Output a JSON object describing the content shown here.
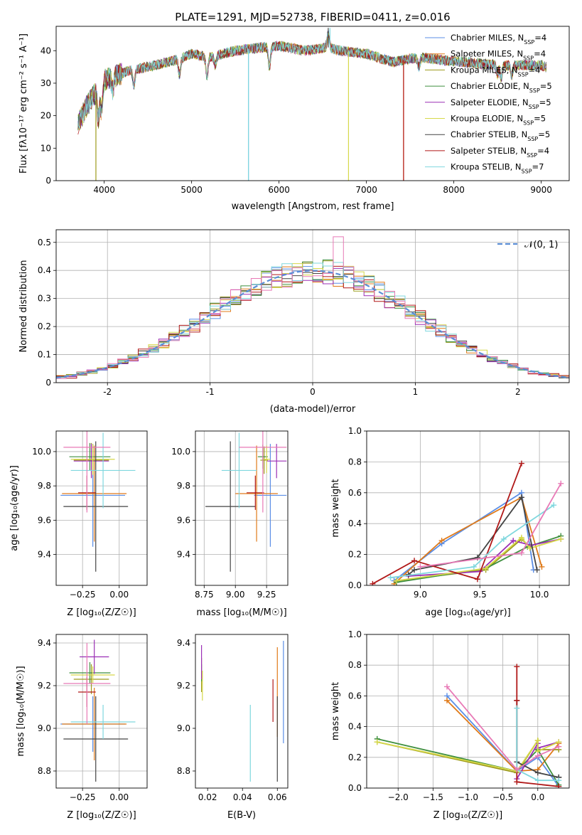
{
  "figure": {
    "title": "PLATE=1291, MJD=52738, FIBERID=0411, z=0.016"
  },
  "colors": {
    "chab_miles": "#5b8ee6",
    "salp_miles": "#e07b1a",
    "krou_miles": "#9c9a1c",
    "chab_elodie": "#3f8f3f",
    "salp_elodie": "#9b2fb5",
    "krou_elodie": "#d6d84a",
    "chab_stelib": "#444444",
    "salp_stelib": "#b01818",
    "krou_stelib": "#7fd7de",
    "pink": "#e879b6",
    "normal": "#5b8ed6",
    "grid": "#b0b0b0"
  },
  "chart_data": [
    {
      "type": "line",
      "panel": "spectrum",
      "xlabel": "wavelength [Angstrom, rest frame]",
      "ylabel": "Flux [fλ10⁻¹⁷ erg cm⁻² s⁻¹ A⁻¹]",
      "xlim": [
        3450,
        9320
      ],
      "ylim": [
        0,
        47.5
      ],
      "xticks": [
        4000,
        5000,
        6000,
        7000,
        8000,
        9000
      ],
      "yticks": [
        0,
        10,
        20,
        30,
        40
      ],
      "grid": false,
      "legend_position": "top-right",
      "series": [
        {
          "name": "Chabrier MILES, N",
          "sub": "SSP",
          "suffix": "=4",
          "color": "#5b8ee6"
        },
        {
          "name": "Salpeter MILES, N",
          "sub": "SSP",
          "suffix": "=4",
          "color": "#e07b1a"
        },
        {
          "name": "Kroupa MILES, N",
          "sub": "SSP",
          "suffix": "=4",
          "color": "#9c9a1c"
        },
        {
          "name": "Chabrier ELODIE, N",
          "sub": "SSP",
          "suffix": "=5",
          "color": "#3f8f3f"
        },
        {
          "name": "Salpeter ELODIE, N",
          "sub": "SSP",
          "suffix": "=5",
          "color": "#9b2fb5"
        },
        {
          "name": "Kroupa ELODIE, N",
          "sub": "SSP",
          "suffix": "=5",
          "color": "#d6d84a"
        },
        {
          "name": "Chabrier STELIB, N",
          "sub": "SSP",
          "suffix": "=5",
          "color": "#444444"
        },
        {
          "name": "Salpeter STELIB, N",
          "sub": "SSP",
          "suffix": "=4",
          "color": "#b01818"
        },
        {
          "name": "Kroupa STELIB, N",
          "sub": "SSP",
          "suffix": "=7",
          "color": "#7fd7de"
        }
      ],
      "continuum": [
        [
          3700,
          17
        ],
        [
          3800,
          23
        ],
        [
          3900,
          27
        ],
        [
          4000,
          31
        ],
        [
          4100,
          32
        ],
        [
          4300,
          34
        ],
        [
          4500,
          35
        ],
        [
          4800,
          37
        ],
        [
          5000,
          39
        ],
        [
          5200,
          38
        ],
        [
          5500,
          40
        ],
        [
          5800,
          41
        ],
        [
          6000,
          41.5
        ],
        [
          6300,
          40
        ],
        [
          6563,
          41
        ],
        [
          6700,
          40
        ],
        [
          7000,
          39
        ],
        [
          7300,
          36.5
        ],
        [
          7600,
          38
        ],
        [
          7900,
          37
        ],
        [
          8300,
          36
        ],
        [
          8600,
          35.5
        ],
        [
          9000,
          35.5
        ],
        [
          9050,
          35
        ]
      ],
      "dips": [
        {
          "x": 3905,
          "y": 0,
          "color": "#9c9a1c"
        },
        {
          "x": 5650,
          "y": 0,
          "color": "#5b8ee6"
        },
        {
          "x": 5650,
          "y": 0,
          "color": "#7fd7de"
        },
        {
          "x": 6795,
          "y": 0,
          "color": "#d6d84a"
        },
        {
          "x": 7425,
          "y": 0,
          "color": "#e07b1a"
        },
        {
          "x": 7425,
          "y": 0,
          "color": "#b01818"
        }
      ],
      "peaks": [
        {
          "x": 6563,
          "y": 47,
          "color": "#444444"
        },
        {
          "x": 6583,
          "y": 47,
          "color": "#7fd7de"
        }
      ]
    },
    {
      "type": "bar",
      "panel": "residuals",
      "xlabel": "(data-model)/error",
      "ylabel": "Normed distribution",
      "xlim": [
        -2.5,
        2.5
      ],
      "ylim": [
        0,
        0.545
      ],
      "xticks": [
        -2,
        -1,
        0,
        1,
        2
      ],
      "yticks": [
        0.0,
        0.1,
        0.2,
        0.3,
        0.4,
        0.5
      ],
      "grid": true,
      "legend_position": "top-right",
      "normal_curve": {
        "label": "𝒩(0, 1)",
        "mu": 0,
        "sigma": 1,
        "color": "#5b8ed6"
      },
      "bin_width": 0.1,
      "bin_start": -2.5,
      "histogram_colors": [
        "#5b8ee6",
        "#e07b1a",
        "#9c9a1c",
        "#3f8f3f",
        "#9b2fb5",
        "#d6d84a",
        "#444444",
        "#b01818",
        "#7fd7de",
        "#e879b6"
      ],
      "histogram_noise": [
        0.03,
        -0.03,
        0.02,
        -0.02,
        0.04,
        -0.04,
        0.01,
        0.05,
        -0.01,
        -0.05
      ]
    },
    {
      "type": "scatter",
      "panel": "age_vs_Z",
      "xlabel": "Z [log₁₀(Z/Z☉)]",
      "ylabel": "age  [log₁₀(age/yr)]",
      "xlim": [
        -0.43,
        0.19
      ],
      "ylim": [
        9.22,
        10.12
      ],
      "xticks": [
        -0.25,
        0.0
      ],
      "xticklabels": [
        "−0.25",
        "0.00"
      ],
      "yticks": [
        9.4,
        9.6,
        9.8,
        10.0
      ],
      "yticklabels": [
        "9.4",
        "9.6",
        "9.8",
        "10.0"
      ],
      "grid": true,
      "points": [
        {
          "x": -0.18,
          "y": 9.745,
          "xerr": 0.22,
          "yerr": 0.3,
          "color": "#5b8ee6"
        },
        {
          "x": -0.17,
          "y": 9.755,
          "xerr": 0.22,
          "yerr": 0.28,
          "color": "#e07b1a"
        },
        {
          "x": -0.19,
          "y": 9.95,
          "xerr": 0.12,
          "yerr": 0.1,
          "color": "#9c9a1c"
        },
        {
          "x": -0.2,
          "y": 9.97,
          "xerr": 0.14,
          "yerr": 0.08,
          "color": "#3f8f3f"
        },
        {
          "x": -0.19,
          "y": 9.945,
          "xerr": 0.12,
          "yerr": 0.1,
          "color": "#9b2fb5"
        },
        {
          "x": -0.18,
          "y": 9.955,
          "xerr": 0.15,
          "yerr": 0.09,
          "color": "#d6d84a"
        },
        {
          "x": -0.16,
          "y": 9.68,
          "xerr": 0.22,
          "yerr": 0.38,
          "color": "#444444"
        },
        {
          "x": -0.22,
          "y": 9.76,
          "xerr": 0.06,
          "yerr": 0.1,
          "color": "#b01818"
        },
        {
          "x": -0.11,
          "y": 9.89,
          "xerr": 0.22,
          "yerr": 0.22,
          "color": "#7fd7de"
        },
        {
          "x": -0.22,
          "y": 10.025,
          "xerr": 0.16,
          "yerr": 0.38,
          "color": "#e879b6"
        }
      ]
    },
    {
      "type": "scatter",
      "panel": "age_vs_mass",
      "xlabel": "mass [log₁₀(M/M☉)]",
      "ylabel": "",
      "xlim": [
        8.68,
        9.42
      ],
      "ylim": [
        9.22,
        10.12
      ],
      "xticks": [
        8.75,
        9.0,
        9.25
      ],
      "xticklabels": [
        "8.75",
        "9.00",
        "9.25"
      ],
      "yticks": [
        9.4,
        9.6,
        9.8,
        10.0
      ],
      "yticklabels": [
        "9.4",
        "9.6",
        "9.8",
        "10.0"
      ],
      "grid": true,
      "points": [
        {
          "x": 9.28,
          "y": 9.745,
          "xerr": 0.13,
          "yerr": 0.3,
          "color": "#5b8ee6"
        },
        {
          "x": 9.17,
          "y": 9.755,
          "xerr": 0.17,
          "yerr": 0.28,
          "color": "#e07b1a"
        },
        {
          "x": 9.23,
          "y": 9.95,
          "xerr": 0.03,
          "yerr": 0.08,
          "color": "#9c9a1c"
        },
        {
          "x": 9.22,
          "y": 9.97,
          "xerr": 0.04,
          "yerr": 0.07,
          "color": "#3f8f3f"
        },
        {
          "x": 9.33,
          "y": 9.945,
          "xerr": 0.08,
          "yerr": 0.1,
          "color": "#9b2fb5"
        },
        {
          "x": 9.25,
          "y": 9.955,
          "xerr": 0.03,
          "yerr": 0.08,
          "color": "#d6d84a"
        },
        {
          "x": 8.96,
          "y": 9.68,
          "xerr": 0.2,
          "yerr": 0.38,
          "color": "#444444"
        },
        {
          "x": 9.16,
          "y": 9.76,
          "xerr": 0.07,
          "yerr": 0.1,
          "color": "#b01818"
        },
        {
          "x": 9.03,
          "y": 9.89,
          "xerr": 0.14,
          "yerr": 0.22,
          "color": "#7fd7de"
        },
        {
          "x": 9.22,
          "y": 10.025,
          "xerr": 0.19,
          "yerr": 0.38,
          "color": "#e879b6"
        }
      ]
    },
    {
      "type": "line",
      "panel": "weight_vs_age",
      "xlabel": "age  [log₁₀(age/yr)]",
      "ylabel": "mass weight",
      "xlim": [
        8.55,
        10.25
      ],
      "ylim": [
        0,
        1.0
      ],
      "xticks": [
        9.0,
        9.5,
        10.0
      ],
      "xticklabels": [
        "9.0",
        "9.5",
        "10.0"
      ],
      "yticks": [
        0,
        0.2,
        0.4,
        0.6,
        0.8,
        1.0
      ],
      "yticklabels": [
        "0.0",
        "0.2",
        "0.4",
        "0.6",
        "0.8",
        "1.0"
      ],
      "grid": true,
      "series": [
        {
          "color": "#5b8ee6",
          "x": [
            8.78,
            9.18,
            9.85,
            9.95
          ],
          "y": [
            0.03,
            0.27,
            0.6,
            0.1
          ]
        },
        {
          "color": "#e07b1a",
          "x": [
            8.78,
            9.18,
            9.85,
            10.02
          ],
          "y": [
            0.01,
            0.29,
            0.57,
            0.12
          ]
        },
        {
          "color": "#9c9a1c",
          "x": [
            8.8,
            9.55,
            9.85,
            9.92
          ],
          "y": [
            0.03,
            0.1,
            0.3,
            0.25
          ]
        },
        {
          "color": "#3f8f3f",
          "x": [
            8.8,
            9.55,
            9.9,
            10.18
          ],
          "y": [
            0.02,
            0.11,
            0.25,
            0.32
          ]
        },
        {
          "color": "#9b2fb5",
          "x": [
            8.9,
            9.5,
            9.78,
            9.93,
            10.18
          ],
          "y": [
            0.06,
            0.09,
            0.29,
            0.26,
            0.3
          ]
        },
        {
          "color": "#d6d84a",
          "x": [
            8.8,
            9.55,
            9.85,
            9.92,
            10.18
          ],
          "y": [
            0.03,
            0.11,
            0.31,
            0.24,
            0.3
          ]
        },
        {
          "color": "#444444",
          "x": [
            8.9,
            8.95,
            9.48,
            9.85,
            9.98
          ],
          "y": [
            0.07,
            0.1,
            0.18,
            0.57,
            0.1
          ]
        },
        {
          "color": "#b01818",
          "x": [
            8.6,
            8.95,
            9.48,
            9.85
          ],
          "y": [
            0.01,
            0.16,
            0.04,
            0.79
          ]
        },
        {
          "color": "#7fd7de",
          "x": [
            8.75,
            9.45,
            9.7,
            10.12
          ],
          "y": [
            0.05,
            0.12,
            0.3,
            0.52
          ]
        },
        {
          "color": "#e879b6",
          "x": [
            9.0,
            9.85,
            10.18
          ],
          "y": [
            0.12,
            0.21,
            0.66
          ]
        }
      ]
    },
    {
      "type": "scatter",
      "panel": "mass_vs_Z",
      "xlabel": "Z [log₁₀(Z/Z☉)]",
      "ylabel": "mass [log₁₀(M/M☉)]",
      "xlim": [
        -0.43,
        0.19
      ],
      "ylim": [
        8.72,
        9.44
      ],
      "xticks": [
        -0.25,
        0.0
      ],
      "xticklabels": [
        "−0.25",
        "0.00"
      ],
      "yticks": [
        8.8,
        9.0,
        9.2,
        9.4
      ],
      "yticklabels": [
        "8.8",
        "9.0",
        "9.2",
        "9.4"
      ],
      "grid": true,
      "points": [
        {
          "x": -0.18,
          "y": 9.02,
          "xerr": 0.22,
          "yerr": 0.13,
          "color": "#5b8ee6"
        },
        {
          "x": -0.17,
          "y": 9.02,
          "xerr": 0.22,
          "yerr": 0.17,
          "color": "#e07b1a"
        },
        {
          "x": -0.19,
          "y": 9.23,
          "xerr": 0.12,
          "yerr": 0.07,
          "color": "#9c9a1c"
        },
        {
          "x": -0.2,
          "y": 9.26,
          "xerr": 0.14,
          "yerr": 0.05,
          "color": "#3f8f3f"
        },
        {
          "x": -0.17,
          "y": 9.335,
          "xerr": 0.1,
          "yerr": 0.08,
          "color": "#9b2fb5"
        },
        {
          "x": -0.18,
          "y": 9.25,
          "xerr": 0.15,
          "yerr": 0.04,
          "color": "#d6d84a"
        },
        {
          "x": -0.16,
          "y": 8.95,
          "xerr": 0.22,
          "yerr": 0.2,
          "color": "#444444"
        },
        {
          "x": -0.22,
          "y": 9.17,
          "xerr": 0.06,
          "yerr": 0.07,
          "color": "#b01818"
        },
        {
          "x": -0.11,
          "y": 9.03,
          "xerr": 0.22,
          "yerr": 0.08,
          "color": "#7fd7de"
        },
        {
          "x": -0.22,
          "y": 9.21,
          "xerr": 0.16,
          "yerr": 0.19,
          "color": "#e879b6"
        }
      ]
    },
    {
      "type": "scatter",
      "panel": "mass_vs_ebv",
      "xlabel": "E(B-V)",
      "ylabel": "",
      "xlim": [
        0.013,
        0.066
      ],
      "ylim": [
        8.72,
        9.44
      ],
      "xticks": [
        0.02,
        0.04,
        0.06
      ],
      "xticklabels": [
        "0.02",
        "0.04",
        "0.06"
      ],
      "yticks": [
        8.8,
        9.0,
        9.2,
        9.4
      ],
      "yticklabels": [
        "8.8",
        "9.0",
        "9.2",
        "9.4"
      ],
      "grid": false,
      "points": [
        {
          "x": 0.0635,
          "y": 9.17,
          "xerr": 0,
          "yerr": 0.24,
          "color": "#5b8ee6"
        },
        {
          "x": 0.06,
          "y": 9.17,
          "xerr": 0,
          "yerr": 0.21,
          "color": "#e07b1a"
        },
        {
          "x": 0.0165,
          "y": 9.25,
          "xerr": 0,
          "yerr": 0.08,
          "color": "#9c9a1c"
        },
        {
          "x": 0.0165,
          "y": 9.26,
          "xerr": 0,
          "yerr": 0.04,
          "color": "#3f8f3f"
        },
        {
          "x": 0.0165,
          "y": 9.31,
          "xerr": 0,
          "yerr": 0.08,
          "color": "#9b2fb5"
        },
        {
          "x": 0.017,
          "y": 9.2,
          "xerr": 0,
          "yerr": 0.07,
          "color": "#d6d84a"
        },
        {
          "x": 0.06,
          "y": 8.95,
          "xerr": 0,
          "yerr": 0.2,
          "color": "#444444"
        },
        {
          "x": 0.0575,
          "y": 9.13,
          "xerr": 0,
          "yerr": 0.1,
          "color": "#b01818"
        },
        {
          "x": 0.0445,
          "y": 8.93,
          "xerr": 0,
          "yerr": 0.18,
          "color": "#7fd7de"
        }
      ]
    },
    {
      "type": "line",
      "panel": "weight_vs_Z",
      "xlabel": "Z [log₁₀(Z/Z☉)]",
      "ylabel": "mass weight",
      "xlim": [
        -2.45,
        0.45
      ],
      "ylim": [
        0,
        1.0
      ],
      "xticks": [
        -2.0,
        -1.5,
        -1.0,
        -0.5,
        0.0
      ],
      "xticklabels": [
        "−2.0",
        "−1.5",
        "−1.0",
        "−0.5",
        "0.0"
      ],
      "yticks": [
        0,
        0.2,
        0.4,
        0.6,
        0.8,
        1.0
      ],
      "yticklabels": [
        "0.0",
        "0.2",
        "0.4",
        "0.6",
        "0.8",
        "1.0"
      ],
      "grid": true,
      "series": [
        {
          "color": "#5b8ee6",
          "x": [
            -1.3,
            -0.3,
            0.0,
            0.3
          ],
          "y": [
            0.6,
            0.11,
            0.2,
            0.01
          ]
        },
        {
          "color": "#e07b1a",
          "x": [
            -1.3,
            -0.3,
            0.0,
            0.3
          ],
          "y": [
            0.57,
            0.11,
            0.12,
            0.29
          ]
        },
        {
          "color": "#9c9a1c",
          "x": [
            -2.3,
            -0.3,
            0.0,
            0.0,
            0.3
          ],
          "y": [
            0.3,
            0.1,
            0.31,
            0.25,
            0.25
          ]
        },
        {
          "color": "#3f8f3f",
          "x": [
            -2.3,
            -0.3,
            0.0,
            0.3
          ],
          "y": [
            0.32,
            0.11,
            0.25,
            0.02
          ]
        },
        {
          "color": "#9b2fb5",
          "x": [
            -0.3,
            0.0,
            0.0,
            0.3
          ],
          "y": [
            0.06,
            0.29,
            0.26,
            0.3
          ]
        },
        {
          "color": "#d6d84a",
          "x": [
            -2.3,
            -0.3,
            0.0,
            0.0,
            0.3
          ],
          "y": [
            0.3,
            0.11,
            0.31,
            0.24,
            0.3
          ]
        },
        {
          "color": "#444444",
          "x": [
            -0.3,
            -0.3,
            0.0,
            0.3,
            0.3
          ],
          "y": [
            0.57,
            0.17,
            0.1,
            0.07,
            0.07
          ]
        },
        {
          "color": "#b01818",
          "x": [
            -0.3,
            -0.3,
            -0.3,
            0.3
          ],
          "y": [
            0.79,
            0.57,
            0.04,
            0.01
          ]
        },
        {
          "color": "#7fd7de",
          "x": [
            -0.3,
            -0.3,
            0.0,
            0.3
          ],
          "y": [
            0.52,
            0.12,
            0.05,
            0.05
          ]
        },
        {
          "color": "#e879b6",
          "x": [
            -1.3,
            -0.3,
            0.0,
            0.3
          ],
          "y": [
            0.66,
            0.12,
            0.21,
            0.27
          ]
        }
      ]
    }
  ]
}
